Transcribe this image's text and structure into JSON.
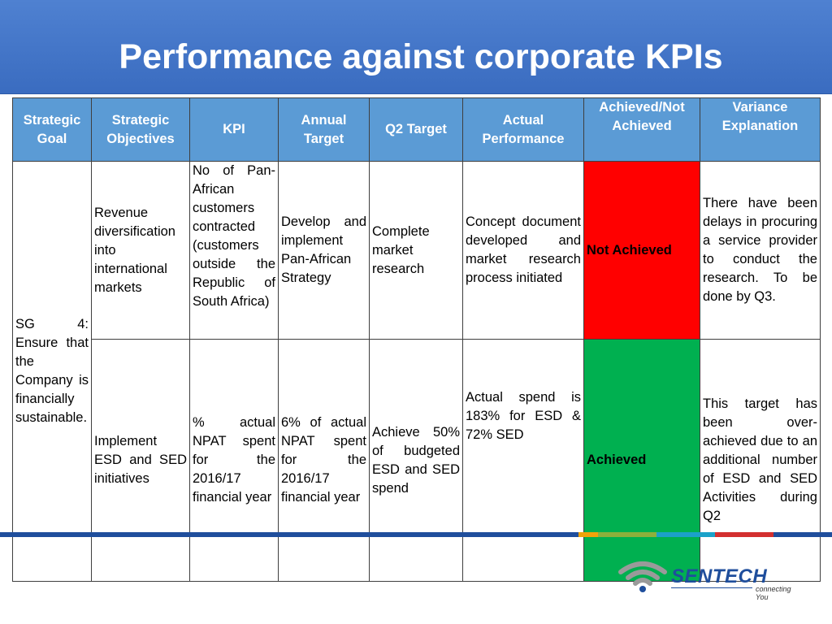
{
  "title": "Performance against corporate KPIs",
  "table": {
    "headers": [
      "Strategic Goal",
      "Strategic Objectives",
      "KPI",
      "Annual Target",
      "Q2 Target",
      "Actual Performance",
      "Achieved/Not Achieved",
      "Variance Explanation"
    ],
    "goal": "SG 4: Ensure that the Company is financially sustainable.",
    "rows": [
      {
        "objective": "Revenue diversification into international markets",
        "kpi": "No of Pan-African customers contracted (customers outside the Republic of South Africa)",
        "annual_target": "Develop and implement Pan-African Strategy",
        "q2_target": "Complete market research",
        "actual": "Concept document developed and market research process initiated",
        "status": "Not Achieved",
        "variance": "There have been delays in procuring a service provider to conduct the research. To be done by Q3."
      },
      {
        "objective": "Implement ESD and SED initiatives",
        "kpi": "% actual NPAT spent for the 2016/17 financial year",
        "annual_target": "6% of actual NPAT spent for the 2016/17 financial year",
        "q2_target": "Achieve 50% of budgeted ESD and SED spend",
        "actual": "Actual spend is 183% for ESD & 72% SED",
        "status": "Achieved",
        "variance": "This target has been over-achieved due to an additional number of ESD and SED Activities during Q2"
      }
    ]
  },
  "colors": {
    "header_bg": "#4472c4",
    "table_header_bg": "#5b9bd5",
    "not_achieved": "#ff0000",
    "achieved": "#00b050"
  },
  "logo": {
    "name": "SENTECH",
    "tagline": "connecting You",
    "icon": "wifi-signal-icon"
  }
}
